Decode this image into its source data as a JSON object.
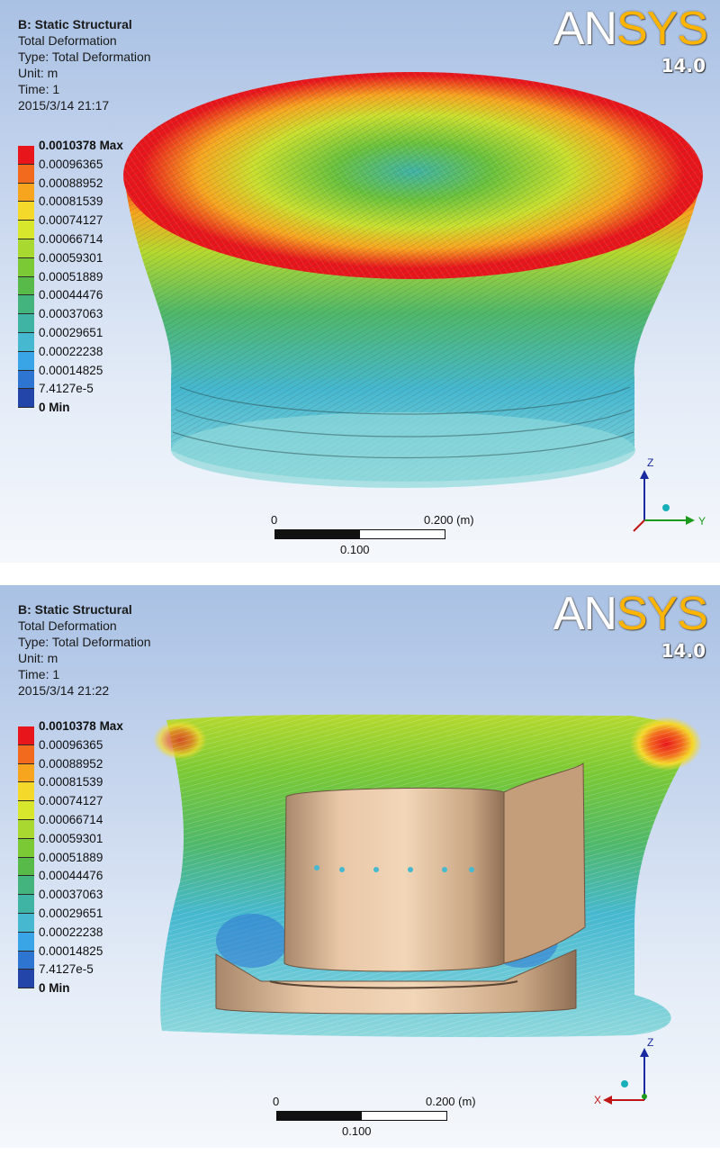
{
  "legend_colors": [
    "#e8161b",
    "#f26a1e",
    "#f7a51f",
    "#f4d92a",
    "#d8e62c",
    "#a9d830",
    "#7ac935",
    "#58bb49",
    "#43b47d",
    "#3fb3a4",
    "#46b8d0",
    "#3aa5e6",
    "#2d75d1",
    "#2344a9"
  ],
  "panels": [
    {
      "title": "B: Static Structural",
      "lines": [
        "Total Deformation",
        "Type: Total Deformation",
        "Unit: m",
        "Time: 1",
        "2015/3/14 21:17"
      ],
      "logo": {
        "brand_a": "AN",
        "brand_b": "SYS",
        "version": "14.0"
      },
      "legend": {
        "labels": [
          "0.0010378 Max",
          "0.00096365",
          "0.00088952",
          "0.00081539",
          "0.00074127",
          "0.00066714",
          "0.00059301",
          "0.00051889",
          "0.00044476",
          "0.00037063",
          "0.00029651",
          "0.00022238",
          "0.00014825",
          "7.4127e-5",
          "0 Min"
        ]
      },
      "scale": {
        "start": "0",
        "end": "0.200 (m)",
        "mid": "0.100"
      },
      "axes": {
        "vertical": "Z",
        "horizontal": "Y"
      }
    },
    {
      "title": "B: Static Structural",
      "lines": [
        "Total Deformation",
        "Type: Total Deformation",
        "Unit: m",
        "Time: 1",
        "2015/3/14 21:22"
      ],
      "logo": {
        "brand_a": "AN",
        "brand_b": "SYS",
        "version": "14.0"
      },
      "legend": {
        "labels": [
          "0.0010378 Max",
          "0.00096365",
          "0.00088952",
          "0.00081539",
          "0.00074127",
          "0.00066714",
          "0.00059301",
          "0.00051889",
          "0.00044476",
          "0.00037063",
          "0.00029651",
          "0.00022238",
          "0.00014825",
          "7.4127e-5",
          "0 Min"
        ]
      },
      "scale": {
        "start": "0",
        "end": "0.200 (m)",
        "mid": "0.100"
      },
      "axes": {
        "vertical": "Z",
        "horizontal": "X"
      }
    }
  ]
}
